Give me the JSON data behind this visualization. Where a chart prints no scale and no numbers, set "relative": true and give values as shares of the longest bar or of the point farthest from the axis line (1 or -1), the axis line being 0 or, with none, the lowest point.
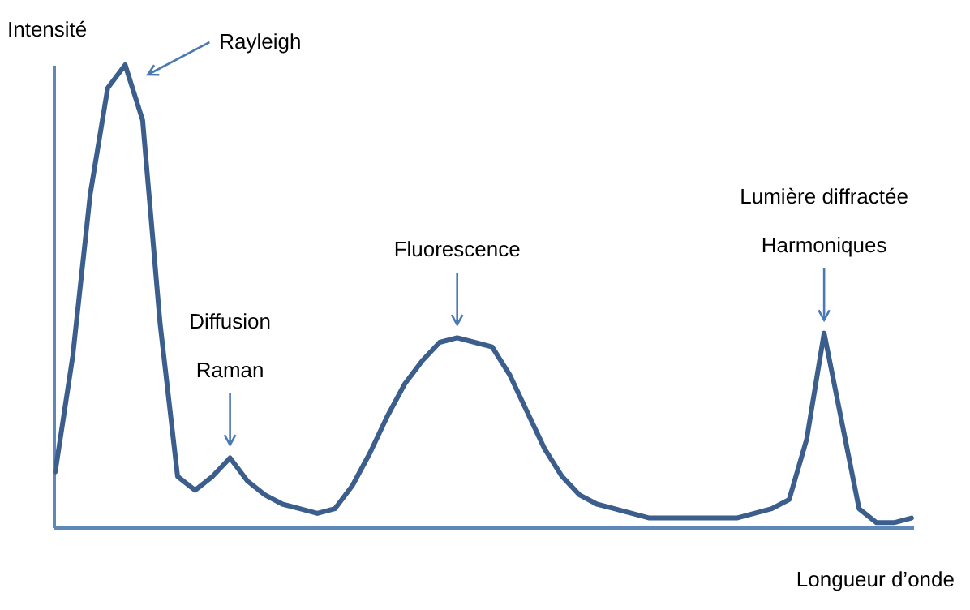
{
  "chart_data": {
    "type": "line",
    "relative": true,
    "xlabel": "Longueur d’onde",
    "ylabel": "Intensité",
    "categories": [
      null,
      null,
      null,
      null,
      null,
      null,
      null,
      null,
      null,
      null,
      null,
      null,
      null,
      null,
      null,
      null,
      null,
      null,
      null,
      null,
      null,
      null,
      null,
      null,
      null,
      null,
      null,
      null,
      null,
      null,
      null,
      null,
      null,
      null,
      null,
      null,
      null,
      null,
      null,
      null,
      null,
      null,
      null,
      null,
      null,
      null,
      null,
      null,
      null,
      null
    ],
    "series": [
      {
        "color": "#3b5e8c",
        "values": [
          0.12,
          0.37,
          0.72,
          0.95,
          1,
          0.88,
          0.44,
          0.11,
          0.08,
          0.11,
          0.15,
          0.1,
          0.07,
          0.05,
          0.04,
          0.03,
          0.04,
          0.09,
          0.16,
          0.24,
          0.31,
          0.36,
          0.4,
          0.41,
          0.4,
          0.39,
          0.33,
          0.25,
          0.17,
          0.11,
          0.07,
          0.05,
          0.04,
          0.03,
          0.02,
          0.02,
          0.02,
          0.02,
          0.02,
          0.02,
          0.03,
          0.04,
          0.06,
          0.19,
          0.42,
          0.23,
          0.04,
          0.01,
          0.01,
          0.02
        ]
      }
    ],
    "annotations": [
      "Rayleigh",
      "Diffusion\nRaman",
      "Fluorescence",
      "Lumière diffractée\nHarmoniques"
    ],
    "grid": false,
    "marker": "none",
    "line_style": "solid",
    "tick_labels": false
  }
}
